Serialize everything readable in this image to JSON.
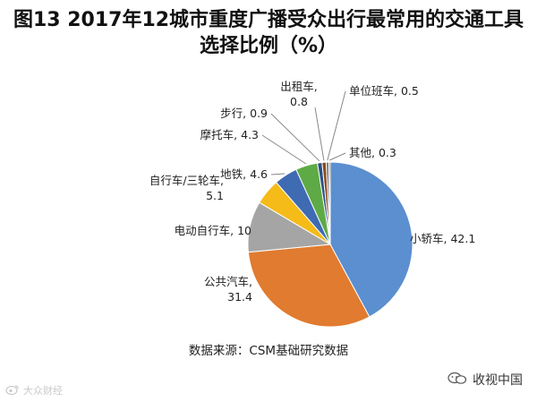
{
  "chart_data": {
    "type": "pie",
    "title_line1": "图13 2017年12城市重度广播受众出行最常用的交通工具",
    "title_line2": "选择比例（%）",
    "slices": [
      {
        "label": "小轿车",
        "value": 42.1,
        "color": "#5b8fd0",
        "lines": [
          "小轿车, 42.1"
        ]
      },
      {
        "label": "公共汽车",
        "value": 31.4,
        "color": "#e07b2f",
        "lines": [
          "公共汽车,",
          "31.4"
        ]
      },
      {
        "label": "电动自行车",
        "value": 10,
        "color": "#a5a5a5",
        "lines": [
          "电动自行车, 10"
        ]
      },
      {
        "label": "自行车/三轮车",
        "value": 5.1,
        "color": "#f4bb19",
        "lines": [
          "自行车/三轮车,",
          "5.1"
        ]
      },
      {
        "label": "地铁",
        "value": 4.6,
        "color": "#3f6bb3",
        "lines": [
          "地铁, 4.6"
        ]
      },
      {
        "label": "摩托车",
        "value": 4.3,
        "color": "#5eaa46",
        "lines": [
          "摩托车, 4.3"
        ]
      },
      {
        "label": "步行",
        "value": 0.9,
        "color": "#2b4f86",
        "lines": [
          "步行, 0.9"
        ]
      },
      {
        "label": "出租车",
        "value": 0.8,
        "color": "#8a4a1f",
        "lines": [
          "出租车,",
          "0.8"
        ]
      },
      {
        "label": "单位班车",
        "value": 0.5,
        "color": "#6d6d6d",
        "lines": [
          "单位班车, 0.5"
        ]
      },
      {
        "label": "其他",
        "value": 0.3,
        "color": "#9c7a1a",
        "lines": [
          "其他, 0.3"
        ]
      }
    ],
    "source": "数据来源：CSM基础研究数据"
  },
  "watermark_left": "大众财经",
  "watermark_right": "收视中国"
}
